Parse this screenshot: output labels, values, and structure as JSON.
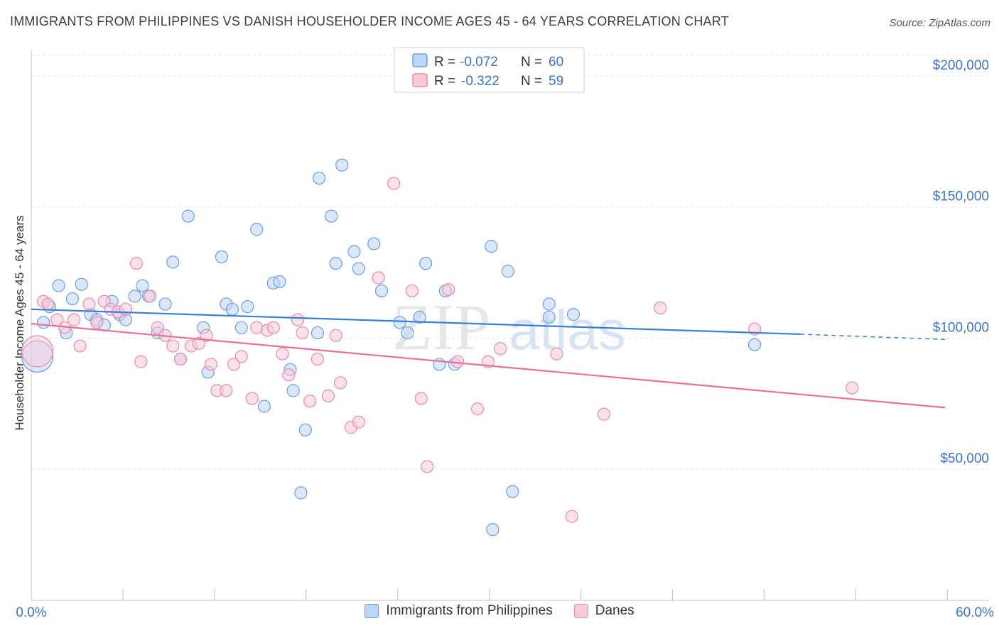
{
  "title": "IMMIGRANTS FROM PHILIPPINES VS DANISH HOUSEHOLDER INCOME AGES 45 - 64 YEARS CORRELATION CHART",
  "source": "Source: ZipAtlas.com",
  "watermark": {
    "zip": "ZIP",
    "atlas": "atlas"
  },
  "colors": {
    "blue": "#3a7fd5",
    "pink": "#e8709a",
    "blue_fill": "#bcd6f5",
    "pink_fill": "#f8cbd9",
    "tick_text": "#3b74c8"
  },
  "legend": {
    "series1": {
      "r_label": "R =",
      "r_value": "-0.072",
      "n_label": "N =",
      "n_value": "60"
    },
    "series2": {
      "r_label": "R =",
      "r_value": "-0.322",
      "n_label": "N =",
      "n_value": "59"
    }
  },
  "chart_data": {
    "type": "scatter",
    "title": "IMMIGRANTS FROM PHILIPPINES VS DANISH HOUSEHOLDER INCOME AGES 45 - 64 YEARS CORRELATION CHART",
    "xlabel": "",
    "ylabel": "Householder Income Ages 45 - 64 years",
    "xlim": [
      0,
      60
    ],
    "ylim": [
      0,
      210000
    ],
    "x_tick_labels": [
      "0.0%",
      "60.0%"
    ],
    "y_ticks": [
      {
        "value": 50000,
        "label": "$50,000"
      },
      {
        "value": 100000,
        "label": "$100,000"
      },
      {
        "value": 150000,
        "label": "$150,000"
      },
      {
        "value": 200000,
        "label": "$200,000"
      }
    ],
    "legend_position": "top-center",
    "series": [
      {
        "name": "Immigrants from Philippines",
        "color": "#3a7fd5",
        "trend": {
          "x0": 0,
          "y0": 111000,
          "x1": 50.5,
          "y1": 101500,
          "dash_to_x": 60,
          "dash_to_y": 99500
        },
        "points": [
          [
            0.4,
            93000,
            "big"
          ],
          [
            0.8,
            106000
          ],
          [
            1.2,
            112000
          ],
          [
            1.8,
            120000
          ],
          [
            2.3,
            102000
          ],
          [
            2.7,
            115000
          ],
          [
            3.3,
            120500
          ],
          [
            3.9,
            109000
          ],
          [
            4.3,
            107000
          ],
          [
            4.8,
            105000
          ],
          [
            5.3,
            114000
          ],
          [
            5.8,
            109000
          ],
          [
            6.2,
            107000
          ],
          [
            6.8,
            116000
          ],
          [
            7.3,
            120000
          ],
          [
            7.7,
            116000
          ],
          [
            8.3,
            102000
          ],
          [
            8.8,
            113000
          ],
          [
            9.3,
            129000
          ],
          [
            9.8,
            92000
          ],
          [
            10.3,
            146500
          ],
          [
            11.3,
            104000
          ],
          [
            11.6,
            87000
          ],
          [
            12.5,
            131000
          ],
          [
            12.8,
            113000
          ],
          [
            13.2,
            111000
          ],
          [
            13.8,
            104000
          ],
          [
            14.2,
            112000
          ],
          [
            14.8,
            141500
          ],
          [
            15.3,
            74000
          ],
          [
            15.9,
            121000
          ],
          [
            16.3,
            121500
          ],
          [
            17.0,
            88000
          ],
          [
            17.2,
            80000
          ],
          [
            17.7,
            41000
          ],
          [
            18.0,
            65000
          ],
          [
            18.8,
            102000
          ],
          [
            18.9,
            161000
          ],
          [
            19.7,
            146500
          ],
          [
            20.0,
            128500
          ],
          [
            20.4,
            166000
          ],
          [
            21.2,
            133000
          ],
          [
            21.5,
            126500
          ],
          [
            22.5,
            136000
          ],
          [
            23.0,
            118000
          ],
          [
            24.2,
            106000
          ],
          [
            24.7,
            102000
          ],
          [
            25.5,
            108000
          ],
          [
            25.9,
            128500
          ],
          [
            26.8,
            90000
          ],
          [
            27.2,
            118000
          ],
          [
            27.8,
            90000
          ],
          [
            30.2,
            135000
          ],
          [
            30.3,
            27000
          ],
          [
            31.3,
            125500
          ],
          [
            31.6,
            41500
          ],
          [
            34.0,
            113000
          ],
          [
            34.0,
            108000
          ],
          [
            47.5,
            97500
          ],
          [
            35.6,
            109000
          ]
        ]
      },
      {
        "name": "Danes",
        "color": "#e8709a",
        "trend": {
          "x0": 0,
          "y0": 105500,
          "x1": 60,
          "y1": 73500
        },
        "points": [
          [
            0.4,
            95000,
            "big"
          ],
          [
            0.8,
            114000
          ],
          [
            1.1,
            113000
          ],
          [
            1.7,
            107000
          ],
          [
            2.2,
            104000
          ],
          [
            2.8,
            107000
          ],
          [
            3.2,
            97000
          ],
          [
            3.8,
            113000
          ],
          [
            4.3,
            106000
          ],
          [
            4.8,
            114000
          ],
          [
            5.2,
            111000
          ],
          [
            5.7,
            110000
          ],
          [
            6.2,
            111000
          ],
          [
            6.9,
            128500
          ],
          [
            7.2,
            91000
          ],
          [
            7.8,
            116000
          ],
          [
            8.3,
            104000
          ],
          [
            8.8,
            101000
          ],
          [
            9.3,
            97000
          ],
          [
            9.8,
            92000
          ],
          [
            10.5,
            97000
          ],
          [
            11.0,
            98000
          ],
          [
            11.5,
            101000
          ],
          [
            11.8,
            90000
          ],
          [
            12.2,
            80000
          ],
          [
            12.8,
            80000
          ],
          [
            13.3,
            90000
          ],
          [
            13.8,
            93000
          ],
          [
            14.5,
            77000
          ],
          [
            14.8,
            104000
          ],
          [
            15.5,
            103000
          ],
          [
            15.9,
            104000
          ],
          [
            16.5,
            94000
          ],
          [
            16.9,
            86000
          ],
          [
            17.5,
            107000
          ],
          [
            17.8,
            102000
          ],
          [
            18.3,
            76000
          ],
          [
            18.8,
            92000
          ],
          [
            19.5,
            78000
          ],
          [
            20.0,
            101000
          ],
          [
            20.3,
            83000
          ],
          [
            21.0,
            66000
          ],
          [
            21.5,
            68000
          ],
          [
            22.8,
            123000
          ],
          [
            23.8,
            159000
          ],
          [
            25.0,
            118000
          ],
          [
            25.6,
            77000
          ],
          [
            26.0,
            51000
          ],
          [
            27.4,
            118500
          ],
          [
            28.0,
            91000
          ],
          [
            29.3,
            73000
          ],
          [
            30.0,
            91000
          ],
          [
            30.8,
            96000
          ],
          [
            34.5,
            94000
          ],
          [
            35.5,
            32000
          ],
          [
            37.6,
            71000
          ],
          [
            41.3,
            111500
          ],
          [
            47.5,
            103500
          ],
          [
            53.9,
            81000
          ]
        ]
      }
    ]
  },
  "bottom_legend": [
    "Immigrants from Philippines",
    "Danes"
  ]
}
